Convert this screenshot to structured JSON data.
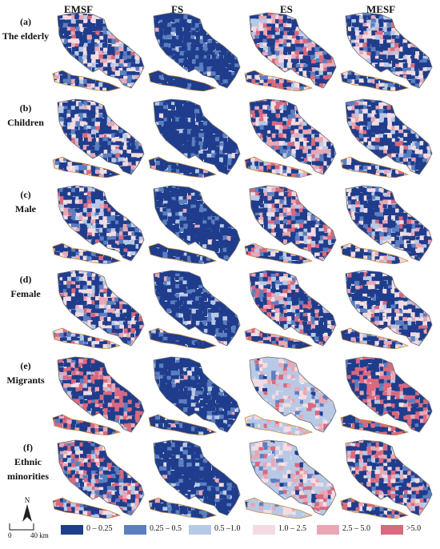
{
  "columns": [
    "EMSF",
    "FS",
    "ES",
    "MESF"
  ],
  "rows": [
    {
      "id": "(a)",
      "label": "The elderly"
    },
    {
      "id": "(b)",
      "label": "Children"
    },
    {
      "id": "(c)",
      "label": "Male"
    },
    {
      "id": "(d)",
      "label": "Female"
    },
    {
      "id": "(e)",
      "label": "Migrants"
    },
    {
      "id": "(f)",
      "label": "Ethnic minorities"
    }
  ],
  "legend": [
    {
      "label": "0 – 0.25",
      "color": "#1f3d8c"
    },
    {
      "label": "0.25 – 0.5",
      "color": "#5b7fc0"
    },
    {
      "label": "0.5 –1.0",
      "color": "#b8c9e6"
    },
    {
      "label": "1.0 – 2.5",
      "color": "#f2dce2"
    },
    {
      "label": "2.5 – 5.0",
      "color": "#e8a7b5"
    },
    {
      "label": ">5.0",
      "color": "#d9697f"
    }
  ],
  "north_label": "N",
  "scale": {
    "start": "0",
    "end": "40 km"
  }
}
